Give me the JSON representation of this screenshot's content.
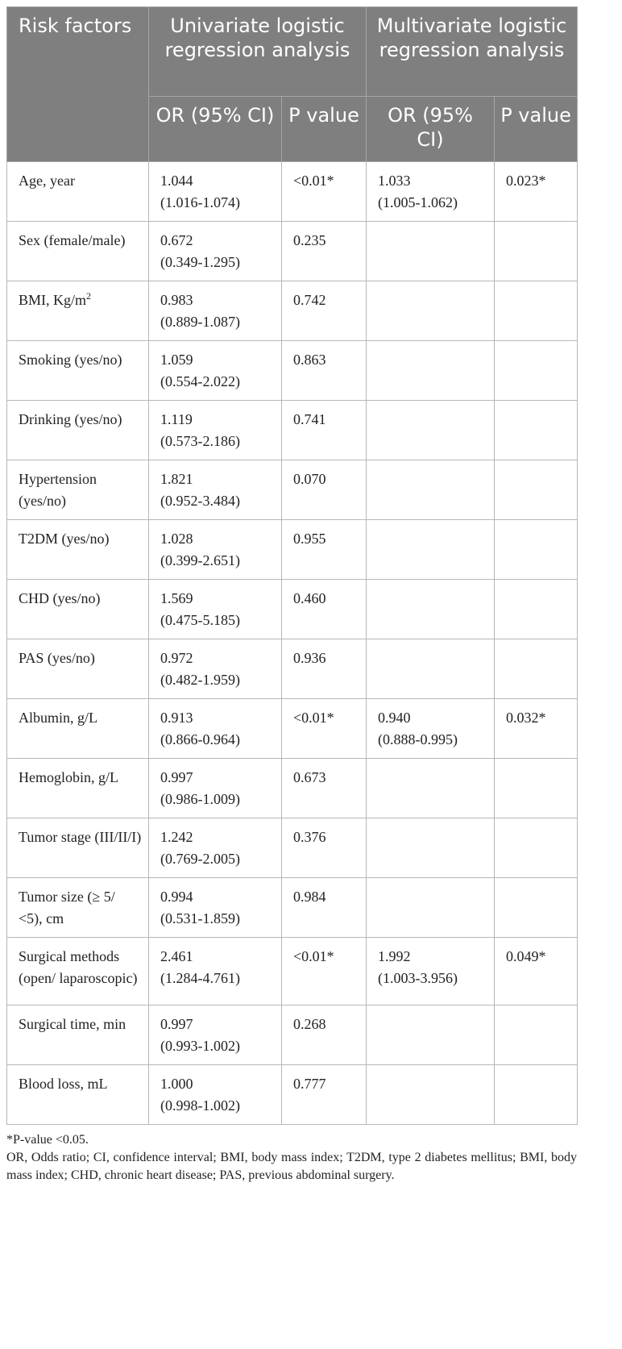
{
  "table": {
    "header": {
      "risk_factors": "Risk factors",
      "univariate": "Univariate logistic regression analysis",
      "multivariate": "Multivariate logistic regression analysis",
      "or_ci": "OR (95% CI)",
      "p_value": "P value"
    },
    "rows": [
      {
        "factor": "Age, year",
        "uni_or": "1.044",
        "uni_ci": "(1.016-1.074)",
        "uni_p": "<0.01*",
        "multi_or": "1.033",
        "multi_ci": "(1.005-1.062)",
        "multi_p": "0.023*"
      },
      {
        "factor": "Sex (female/male)",
        "uni_or": "0.672",
        "uni_ci": "(0.349-1.295)",
        "uni_p": "0.235",
        "multi_or": "",
        "multi_ci": "",
        "multi_p": ""
      },
      {
        "factor": "BMI, Kg/m2",
        "uni_or": "0.983",
        "uni_ci": "(0.889-1.087)",
        "uni_p": "0.742",
        "multi_or": "",
        "multi_ci": "",
        "multi_p": ""
      },
      {
        "factor": "Smoking (yes/no)",
        "uni_or": "1.059",
        "uni_ci": "(0.554-2.022)",
        "uni_p": "0.863",
        "multi_or": "",
        "multi_ci": "",
        "multi_p": ""
      },
      {
        "factor": "Drinking (yes/no)",
        "uni_or": "1.119",
        "uni_ci": "(0.573-2.186)",
        "uni_p": "0.741",
        "multi_or": "",
        "multi_ci": "",
        "multi_p": ""
      },
      {
        "factor": "Hypertension (yes/no)",
        "uni_or": "1.821",
        "uni_ci": "(0.952-3.484)",
        "uni_p": "0.070",
        "multi_or": "",
        "multi_ci": "",
        "multi_p": ""
      },
      {
        "factor": "T2DM (yes/no)",
        "uni_or": "1.028",
        "uni_ci": "(0.399-2.651)",
        "uni_p": "0.955",
        "multi_or": "",
        "multi_ci": "",
        "multi_p": ""
      },
      {
        "factor": "CHD (yes/no)",
        "uni_or": "1.569",
        "uni_ci": "(0.475-5.185)",
        "uni_p": "0.460",
        "multi_or": "",
        "multi_ci": "",
        "multi_p": ""
      },
      {
        "factor": "PAS (yes/no)",
        "uni_or": "0.972",
        "uni_ci": "(0.482-1.959)",
        "uni_p": "0.936",
        "multi_or": "",
        "multi_ci": "",
        "multi_p": ""
      },
      {
        "factor": "Albumin, g/L",
        "uni_or": "0.913",
        "uni_ci": "(0.866-0.964)",
        "uni_p": "<0.01*",
        "multi_or": "0.940",
        "multi_ci": "(0.888-0.995)",
        "multi_p": "0.032*"
      },
      {
        "factor": "Hemoglobin, g/L",
        "uni_or": "0.997",
        "uni_ci": "(0.986-1.009)",
        "uni_p": "0.673",
        "multi_or": "",
        "multi_ci": "",
        "multi_p": ""
      },
      {
        "factor": "Tumor stage (III/II/I)",
        "uni_or": "1.242",
        "uni_ci": "(0.769-2.005)",
        "uni_p": "0.376",
        "multi_or": "",
        "multi_ci": "",
        "multi_p": ""
      },
      {
        "factor": "Tumor size (≥ 5/ <5), cm",
        "uni_or": "0.994",
        "uni_ci": "(0.531-1.859)",
        "uni_p": "0.984",
        "multi_or": "",
        "multi_ci": "",
        "multi_p": ""
      },
      {
        "factor": "Surgical methods (open/ laparoscopic)",
        "uni_or": "2.461",
        "uni_ci": "(1.284-4.761)",
        "uni_p": "<0.01*",
        "multi_or": "1.992",
        "multi_ci": "(1.003-3.956)",
        "multi_p": "0.049*"
      },
      {
        "factor": "Surgical time, min",
        "uni_or": "0.997",
        "uni_ci": "(0.993-1.002)",
        "uni_p": "0.268",
        "multi_or": "",
        "multi_ci": "",
        "multi_p": ""
      },
      {
        "factor": "Blood loss, mL",
        "uni_or": "1.000",
        "uni_ci": "(0.998-1.002)",
        "uni_p": "0.777",
        "multi_or": "",
        "multi_ci": "",
        "multi_p": ""
      }
    ]
  },
  "footnotes": {
    "significance": "*P-value <0.05.",
    "abbreviations": "OR, Odds ratio; CI, confidence interval; BMI, body mass index; T2DM, type 2 diabetes mellitus; BMI, body mass index; CHD, chronic heart disease; PAS, previous abdominal surgery."
  }
}
